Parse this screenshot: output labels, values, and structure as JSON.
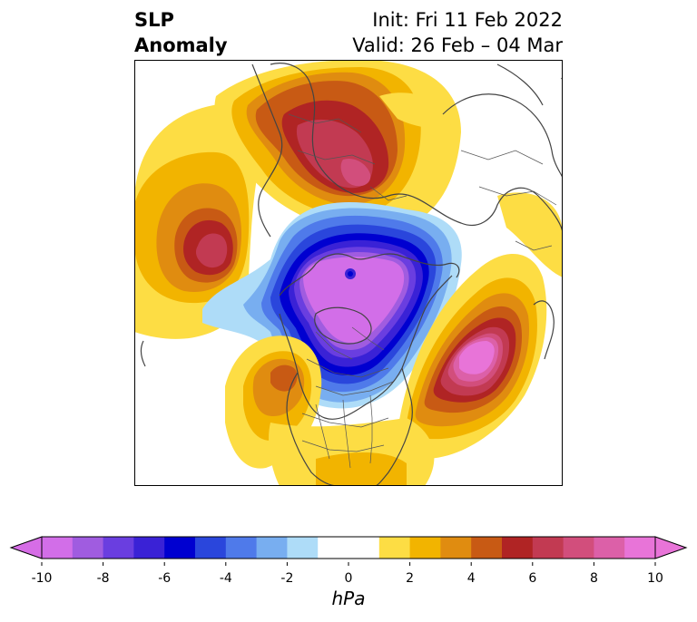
{
  "title": {
    "left_line1": "SLP",
    "left_line2": "Anomaly",
    "right_line1": "Init: Fri 11 Feb 2022",
    "right_line2": "Valid: 26 Feb – 04 Mar"
  },
  "colorbar": {
    "label": "hPa",
    "ticks": [
      "-10",
      "-8",
      "-6",
      "-4",
      "-2",
      "0",
      "2",
      "4",
      "6",
      "8",
      "10"
    ],
    "low_extend_color": "#d66de6",
    "high_extend_color": "#e874d8",
    "colors": [
      "#d26ee8",
      "#a05ce0",
      "#6a3ee0",
      "#3a22d6",
      "#0000d0",
      "#2a46dc",
      "#4f7aea",
      "#78aef0",
      "#aedcf8",
      "#ffffff",
      "#ffffff",
      "#fddd44",
      "#f2b400",
      "#e08c10",
      "#c85a14",
      "#b02424",
      "#c23a52",
      "#d24e7c",
      "#dc60a8",
      "#e874d8"
    ]
  },
  "map": {
    "projection": "north-polar-stereographic",
    "features": [
      "coastlines",
      "country-borders",
      "state-borders"
    ]
  }
}
